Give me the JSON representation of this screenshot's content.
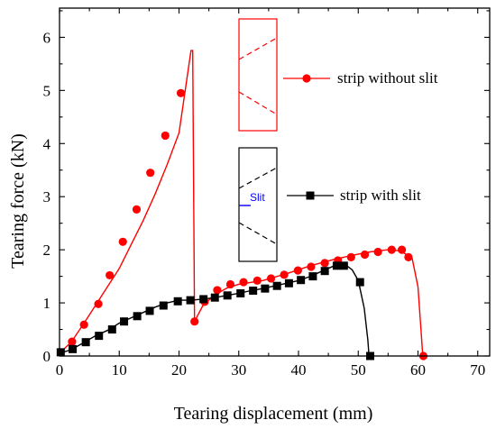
{
  "chart_data": {
    "type": "line",
    "xlabel": "Tearing displacement (mm)",
    "ylabel": "Tearing force (kN)",
    "xlim": [
      0,
      72
    ],
    "ylim": [
      0,
      6.55
    ],
    "xticks": [
      0,
      10,
      20,
      30,
      40,
      50,
      60,
      70
    ],
    "yticks": [
      0,
      1,
      2,
      3,
      4,
      5,
      6
    ],
    "grid": false,
    "legend_position": "right-middle",
    "series": [
      {
        "name": "strip without slit",
        "color": "#ff0000",
        "marker": "circle",
        "line": [
          [
            0,
            0.05
          ],
          [
            2,
            0.27
          ],
          [
            4,
            0.6
          ],
          [
            6,
            0.95
          ],
          [
            8,
            1.3
          ],
          [
            10,
            1.65
          ],
          [
            12,
            2.1
          ],
          [
            14,
            2.55
          ],
          [
            16,
            3.05
          ],
          [
            18,
            3.6
          ],
          [
            20,
            4.2
          ],
          [
            22,
            5.75
          ],
          [
            22.3,
            5.75
          ],
          [
            22.6,
            0.65
          ],
          [
            24,
            0.95
          ],
          [
            26,
            1.15
          ],
          [
            28,
            1.28
          ],
          [
            30,
            1.35
          ],
          [
            34,
            1.42
          ],
          [
            38,
            1.55
          ],
          [
            42,
            1.7
          ],
          [
            46,
            1.82
          ],
          [
            50,
            1.92
          ],
          [
            52,
            1.96
          ],
          [
            55,
            2.0
          ],
          [
            57,
            1.98
          ],
          [
            59,
            1.85
          ],
          [
            60,
            1.3
          ],
          [
            60.5,
            0.5
          ],
          [
            60.8,
            0.0
          ]
        ],
        "markers": [
          [
            2.1,
            0.27
          ],
          [
            4.1,
            0.59
          ],
          [
            6.5,
            0.98
          ],
          [
            8.4,
            1.52
          ],
          [
            10.6,
            2.15
          ],
          [
            12.9,
            2.76
          ],
          [
            15.2,
            3.45
          ],
          [
            17.7,
            4.15
          ],
          [
            20.3,
            4.95
          ],
          [
            22.6,
            0.65
          ],
          [
            24.3,
            1.02
          ],
          [
            26.4,
            1.24
          ],
          [
            28.6,
            1.35
          ],
          [
            30.8,
            1.39
          ],
          [
            33.1,
            1.42
          ],
          [
            35.4,
            1.46
          ],
          [
            37.6,
            1.53
          ],
          [
            39.9,
            1.61
          ],
          [
            42.1,
            1.68
          ],
          [
            44.4,
            1.75
          ],
          [
            46.6,
            1.8
          ],
          [
            48.8,
            1.86
          ],
          [
            51.1,
            1.91
          ],
          [
            53.3,
            1.96
          ],
          [
            55.6,
            2.0
          ],
          [
            57.3,
            2.0
          ],
          [
            58.4,
            1.86
          ],
          [
            60.9,
            0.0
          ]
        ]
      },
      {
        "name": "strip with slit",
        "color": "#000000",
        "marker": "square",
        "line": [
          [
            0,
            0.05
          ],
          [
            2,
            0.12
          ],
          [
            4,
            0.25
          ],
          [
            6,
            0.38
          ],
          [
            8,
            0.48
          ],
          [
            10,
            0.62
          ],
          [
            12,
            0.72
          ],
          [
            14,
            0.82
          ],
          [
            16,
            0.92
          ],
          [
            18,
            1.0
          ],
          [
            20,
            1.05
          ],
          [
            22,
            1.05
          ],
          [
            24,
            1.07
          ],
          [
            26,
            1.1
          ],
          [
            28,
            1.14
          ],
          [
            30,
            1.18
          ],
          [
            32,
            1.23
          ],
          [
            34,
            1.27
          ],
          [
            36,
            1.32
          ],
          [
            38,
            1.37
          ],
          [
            40,
            1.42
          ],
          [
            42,
            1.5
          ],
          [
            44,
            1.6
          ],
          [
            46,
            1.7
          ],
          [
            47.5,
            1.75
          ],
          [
            49,
            1.62
          ],
          [
            50,
            1.42
          ],
          [
            51,
            0.9
          ],
          [
            51.6,
            0.3
          ],
          [
            51.8,
            0.0
          ]
        ],
        "markers": [
          [
            0.2,
            0.07
          ],
          [
            2.2,
            0.13
          ],
          [
            4.4,
            0.26
          ],
          [
            6.6,
            0.38
          ],
          [
            8.8,
            0.5
          ],
          [
            10.8,
            0.65
          ],
          [
            13.0,
            0.75
          ],
          [
            15.1,
            0.85
          ],
          [
            17.4,
            0.95
          ],
          [
            19.8,
            1.03
          ],
          [
            21.9,
            1.05
          ],
          [
            24.1,
            1.07
          ],
          [
            26.0,
            1.1
          ],
          [
            28.1,
            1.14
          ],
          [
            30.3,
            1.18
          ],
          [
            32.4,
            1.23
          ],
          [
            34.4,
            1.27
          ],
          [
            36.4,
            1.32
          ],
          [
            38.4,
            1.37
          ],
          [
            40.4,
            1.43
          ],
          [
            42.4,
            1.5
          ],
          [
            44.4,
            1.6
          ],
          [
            46.4,
            1.7
          ],
          [
            47.6,
            1.7
          ],
          [
            50.3,
            1.39
          ],
          [
            52.0,
            0.0
          ]
        ]
      }
    ]
  }
}
